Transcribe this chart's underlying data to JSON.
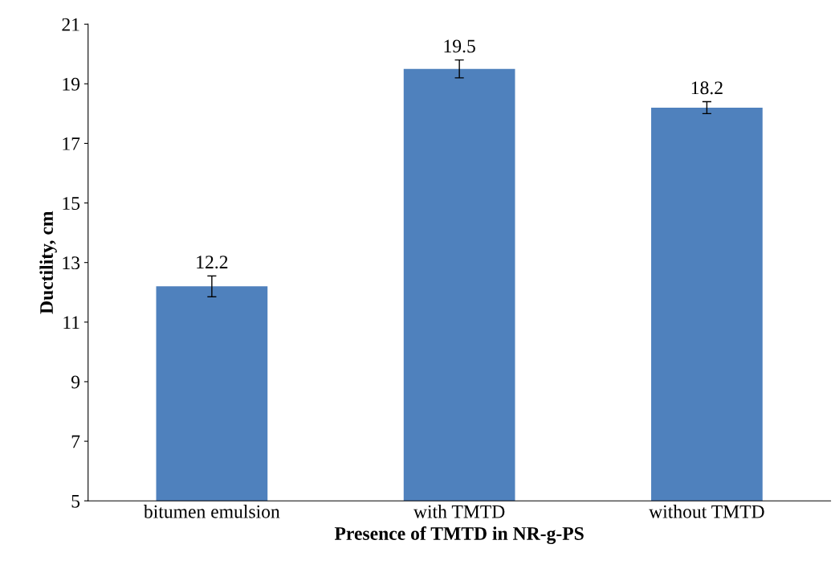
{
  "chart_data": {
    "type": "bar",
    "xlabel": "Presence of TMTD in NR-g-PS",
    "ylabel": "Ductility, cm",
    "categories": [
      "bitumen emulsion",
      "with TMTD",
      "without TMTD"
    ],
    "values": [
      12.2,
      19.5,
      18.2
    ],
    "errors": [
      0.35,
      0.3,
      0.2
    ],
    "color": "#4f81bd",
    "data_labels": true,
    "ylim": [
      5,
      21
    ],
    "yticks": [
      5,
      7,
      9,
      11,
      13,
      15,
      17,
      19,
      21
    ],
    "grid": false
  }
}
